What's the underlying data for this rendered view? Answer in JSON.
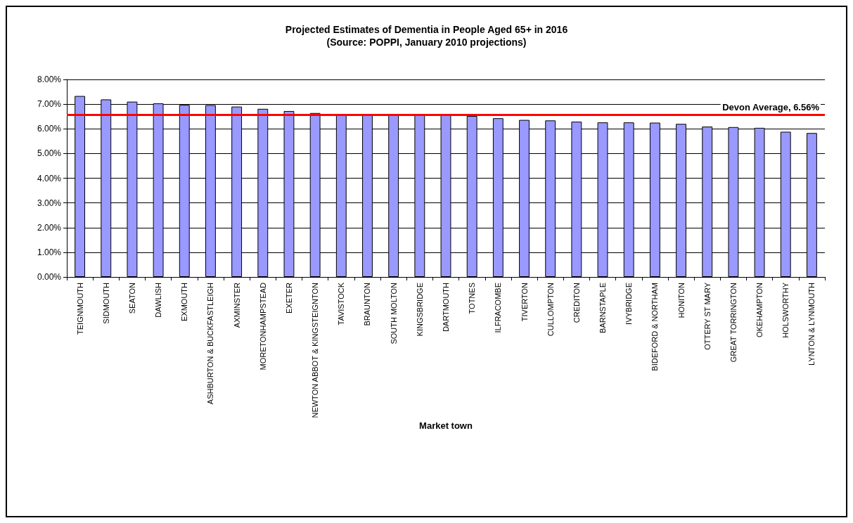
{
  "chart_data": {
    "type": "bar",
    "title": "Projected Estimates of Dementia in People Aged 65+ in 2016",
    "subtitle": "(Source: POPPI, January 2010 projections)",
    "xlabel": "Market town",
    "categories": [
      "TEIGNMOUTH",
      "SIDMOUTH",
      "SEATON",
      "DAWLISH",
      "EXMOUTH",
      "ASHBURTON & BUCKFASTLEIGH",
      "AXMINSTER",
      "MORETONHAMPSTEAD",
      "EXETER",
      "NEWTON ABBOT & KINGSTEIGNTON",
      "TAVISTOCK",
      "BRAUNTON",
      "SOUTH MOLTON",
      "KINGSBRIDGE",
      "DARTMOUTH",
      "TOTNES",
      "ILFRACOMBE",
      "TIVERTON",
      "CULLOMPTON",
      "CREDITON",
      "BARNSTAPLE",
      "IVYBRIDGE",
      "BIDEFORD & NORTHAM",
      "HONITON",
      "OTTERY ST MARY",
      "GREAT TORRINGTON",
      "OKEHAMPTON",
      "HOLSWORTHY",
      "LYNTON & LYNMOUTH"
    ],
    "series": [
      {
        "color": "#9999ff",
        "values": [
          7.33,
          7.19,
          7.1,
          7.03,
          6.97,
          6.96,
          6.9,
          6.81,
          6.72,
          6.64,
          6.59,
          6.59,
          6.57,
          6.57,
          6.56,
          6.52,
          6.43,
          6.36,
          6.34,
          6.29,
          6.26,
          6.26,
          6.25,
          6.2,
          6.09,
          6.07,
          6.04,
          5.88,
          5.83
        ]
      }
    ],
    "ylim": [
      0,
      8
    ],
    "yticks": [
      {
        "value": 0,
        "label": "0.00%"
      },
      {
        "value": 1,
        "label": "1.00%"
      },
      {
        "value": 2,
        "label": "2.00%"
      },
      {
        "value": 3,
        "label": "3.00%"
      },
      {
        "value": 4,
        "label": "4.00%"
      },
      {
        "value": 5,
        "label": "5.00%"
      },
      {
        "value": 6,
        "label": "6.00%"
      },
      {
        "value": 7,
        "label": "7.00%"
      },
      {
        "value": 8,
        "label": "8.00%"
      }
    ],
    "ref_lines": [
      {
        "axis": "y",
        "value": 6.56,
        "label": "Devon Average, 6.56%",
        "color": "#ff0000"
      }
    ],
    "grid": "y"
  }
}
